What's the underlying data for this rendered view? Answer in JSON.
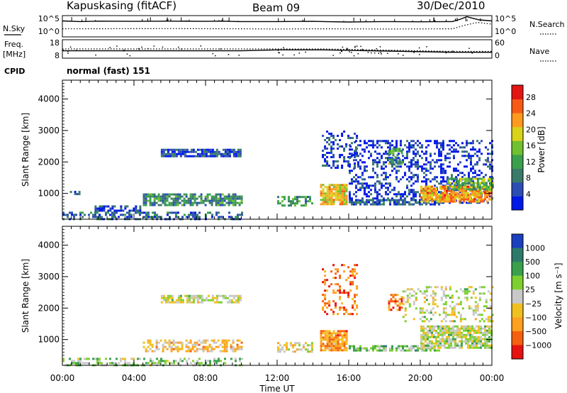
{
  "header": {
    "station": "Kapuskasing (fitACF)",
    "beam": "Beam 09",
    "date": "30/Dec/2010"
  },
  "left_labels": {
    "nsky": "N.Sky",
    "freq": "Freq.",
    "mhz": "[MHz]",
    "cpid": "CPID"
  },
  "right_labels": {
    "nsearch": "N.Search",
    "nave": "Nave"
  },
  "cpid_text": "normal (fast) 151",
  "chart_data": [
    {
      "type": "line",
      "name": "noise-panel",
      "y_left_ticks": [
        "10^5",
        "10^0"
      ],
      "y_right_ticks": [
        "10^5",
        "10^0"
      ],
      "data_gaps_ut": [
        [
          10.0,
          12.0
        ],
        [
          14.1,
          14.6
        ]
      ],
      "series": [
        {
          "name": "N.Sky",
          "style": "solid",
          "x": [
            0,
            1,
            2,
            4,
            6,
            8,
            9,
            9.8,
            12.0,
            14.0,
            14.6,
            16,
            18,
            20,
            21.8,
            22.3,
            22.6,
            22.9,
            23.3,
            24
          ],
          "y": [
            0.75,
            0.72,
            0.74,
            0.73,
            0.74,
            0.73,
            0.74,
            0.72,
            0.72,
            0.73,
            0.72,
            0.7,
            0.72,
            0.71,
            0.72,
            0.85,
            0.95,
            0.88,
            0.8,
            0.75
          ]
        },
        {
          "name": "N.Search",
          "style": "dotted",
          "x": [
            0,
            6,
            9.9,
            12.0,
            14.0,
            14.6,
            18,
            21.8,
            22.5,
            23.2,
            24
          ],
          "y": [
            0.38,
            0.39,
            0.38,
            0.37,
            0.38,
            0.38,
            0.37,
            0.38,
            0.55,
            0.68,
            0.6
          ]
        }
      ]
    },
    {
      "type": "line",
      "name": "freq-nave-panel",
      "y_left_ticks": [
        "18",
        "8"
      ],
      "y_right_ticks": [
        "60",
        "0"
      ],
      "series": [
        {
          "name": "Freq",
          "style": "solid",
          "unit": "MHz",
          "x": [
            0,
            10.0,
            12.0,
            14.1,
            14.6,
            21.8,
            24
          ],
          "y": [
            12,
            12,
            12.5,
            12.5,
            12.5,
            11.2,
            11.2
          ]
        },
        {
          "name": "Nave",
          "style": "dotted",
          "unit": "",
          "x": [
            0,
            10.0,
            12.0,
            14.1,
            14.6,
            21.8,
            24
          ],
          "y": [
            30,
            30,
            30,
            30,
            30,
            22,
            22
          ]
        }
      ]
    },
    {
      "type": "heatmap",
      "name": "power",
      "ylabel": "Slant Range [km]",
      "ylim": [
        180,
        4600
      ],
      "y_ticks": [
        1000,
        2000,
        3000,
        4000
      ],
      "colorbar_label": "Power [dB]",
      "colorbar_ticks": [
        4,
        8,
        12,
        16,
        20,
        24,
        28
      ],
      "colorbar_range": [
        0,
        31
      ],
      "colors": [
        "#0018e8",
        "#2c4db4",
        "#3a7a6a",
        "#3ba04e",
        "#70c030",
        "#d9d21a",
        "#ff9a1e",
        "#f85a16",
        "#e21612"
      ],
      "regions_ut_km": [
        {
          "x": [
            0.3,
            1.0
          ],
          "y": [
            980,
            1080
          ],
          "level": 0.18,
          "density": 0.5
        },
        {
          "x": [
            5.5,
            10.0
          ],
          "y": [
            2200,
            2420
          ],
          "level": 0.15,
          "density": 0.75
        },
        {
          "x": [
            1.8,
            4.5
          ],
          "y": [
            450,
            620
          ],
          "level": 0.15,
          "density": 0.6
        },
        {
          "x": [
            4.5,
            10.0
          ],
          "y": [
            650,
            1000
          ],
          "level": 0.32,
          "density": 0.7
        },
        {
          "x": [
            0.0,
            10.0
          ],
          "y": [
            180,
            420
          ],
          "level": 0.22,
          "density": 0.45
        },
        {
          "x": [
            12.0,
            14.0
          ],
          "y": [
            620,
            920
          ],
          "level": 0.35,
          "density": 0.55
        },
        {
          "x": [
            14.4,
            15.9
          ],
          "y": [
            650,
            1300
          ],
          "level": 0.62,
          "density": 0.9
        },
        {
          "x": [
            14.5,
            16.5
          ],
          "y": [
            1800,
            3000
          ],
          "level": 0.12,
          "density": 0.3
        },
        {
          "x": [
            16.0,
            24.0
          ],
          "y": [
            700,
            2700
          ],
          "level": 0.1,
          "density": 0.35
        },
        {
          "x": [
            16.0,
            21.0
          ],
          "y": [
            620,
            820
          ],
          "level": 0.18,
          "density": 0.75
        },
        {
          "x": [
            20.0,
            24.0
          ],
          "y": [
            750,
            1250
          ],
          "level": 0.72,
          "density": 0.85
        },
        {
          "x": [
            21.5,
            24.0
          ],
          "y": [
            1150,
            1500
          ],
          "level": 0.45,
          "density": 0.7
        },
        {
          "x": [
            18.2,
            19.0
          ],
          "y": [
            1950,
            2450
          ],
          "level": 0.4,
          "density": 0.65
        }
      ]
    },
    {
      "type": "heatmap",
      "name": "velocity",
      "ylabel": "Slant Range [km]",
      "ylim": [
        180,
        4600
      ],
      "y_ticks": [
        1000,
        2000,
        3000,
        4000
      ],
      "colorbar_label": "Velocity [m s⁻¹]",
      "colorbar_ticks": [
        "1000",
        "500",
        "100",
        "25",
        "−25",
        "−100",
        "−500",
        "−1000"
      ],
      "colors": [
        "#1a3fc0",
        "#2e7a6a",
        "#3aa04e",
        "#7ed030",
        "#c8c8c8",
        "#f0c020",
        "#ffa020",
        "#f56010",
        "#e61212"
      ],
      "regions_ut_km": [
        {
          "x": [
            0.0,
            10.0
          ],
          "y": [
            180,
            420
          ],
          "level": 0.4,
          "density": 0.45
        },
        {
          "x": [
            5.5,
            10.0
          ],
          "y": [
            2200,
            2420
          ],
          "level": 0.5,
          "density": 0.7
        },
        {
          "x": [
            4.5,
            10.0
          ],
          "y": [
            650,
            1000
          ],
          "level": 0.62,
          "density": 0.55
        },
        {
          "x": [
            12.0,
            14.0
          ],
          "y": [
            620,
            920
          ],
          "level": 0.55,
          "density": 0.5
        },
        {
          "x": [
            14.4,
            15.9
          ],
          "y": [
            650,
            1300
          ],
          "level": 0.72,
          "density": 0.85
        },
        {
          "x": [
            14.5,
            16.5
          ],
          "y": [
            1800,
            3400
          ],
          "level": 0.8,
          "density": 0.28
        },
        {
          "x": [
            16.0,
            21.0
          ],
          "y": [
            620,
            820
          ],
          "level": 0.38,
          "density": 0.75
        },
        {
          "x": [
            20.0,
            24.0
          ],
          "y": [
            750,
            1450
          ],
          "level": 0.48,
          "density": 0.8
        },
        {
          "x": [
            18.2,
            19.0
          ],
          "y": [
            1950,
            2450
          ],
          "level": 0.78,
          "density": 0.6
        },
        {
          "x": [
            19.0,
            24.0
          ],
          "y": [
            1600,
            2700
          ],
          "level": 0.5,
          "density": 0.3
        }
      ]
    }
  ],
  "x_axis": {
    "label": "Time UT",
    "ticks": [
      "00:00",
      "04:00",
      "08:00",
      "12:00",
      "16:00",
      "20:00",
      "00:00"
    ],
    "range_hours": [
      0,
      24
    ]
  }
}
